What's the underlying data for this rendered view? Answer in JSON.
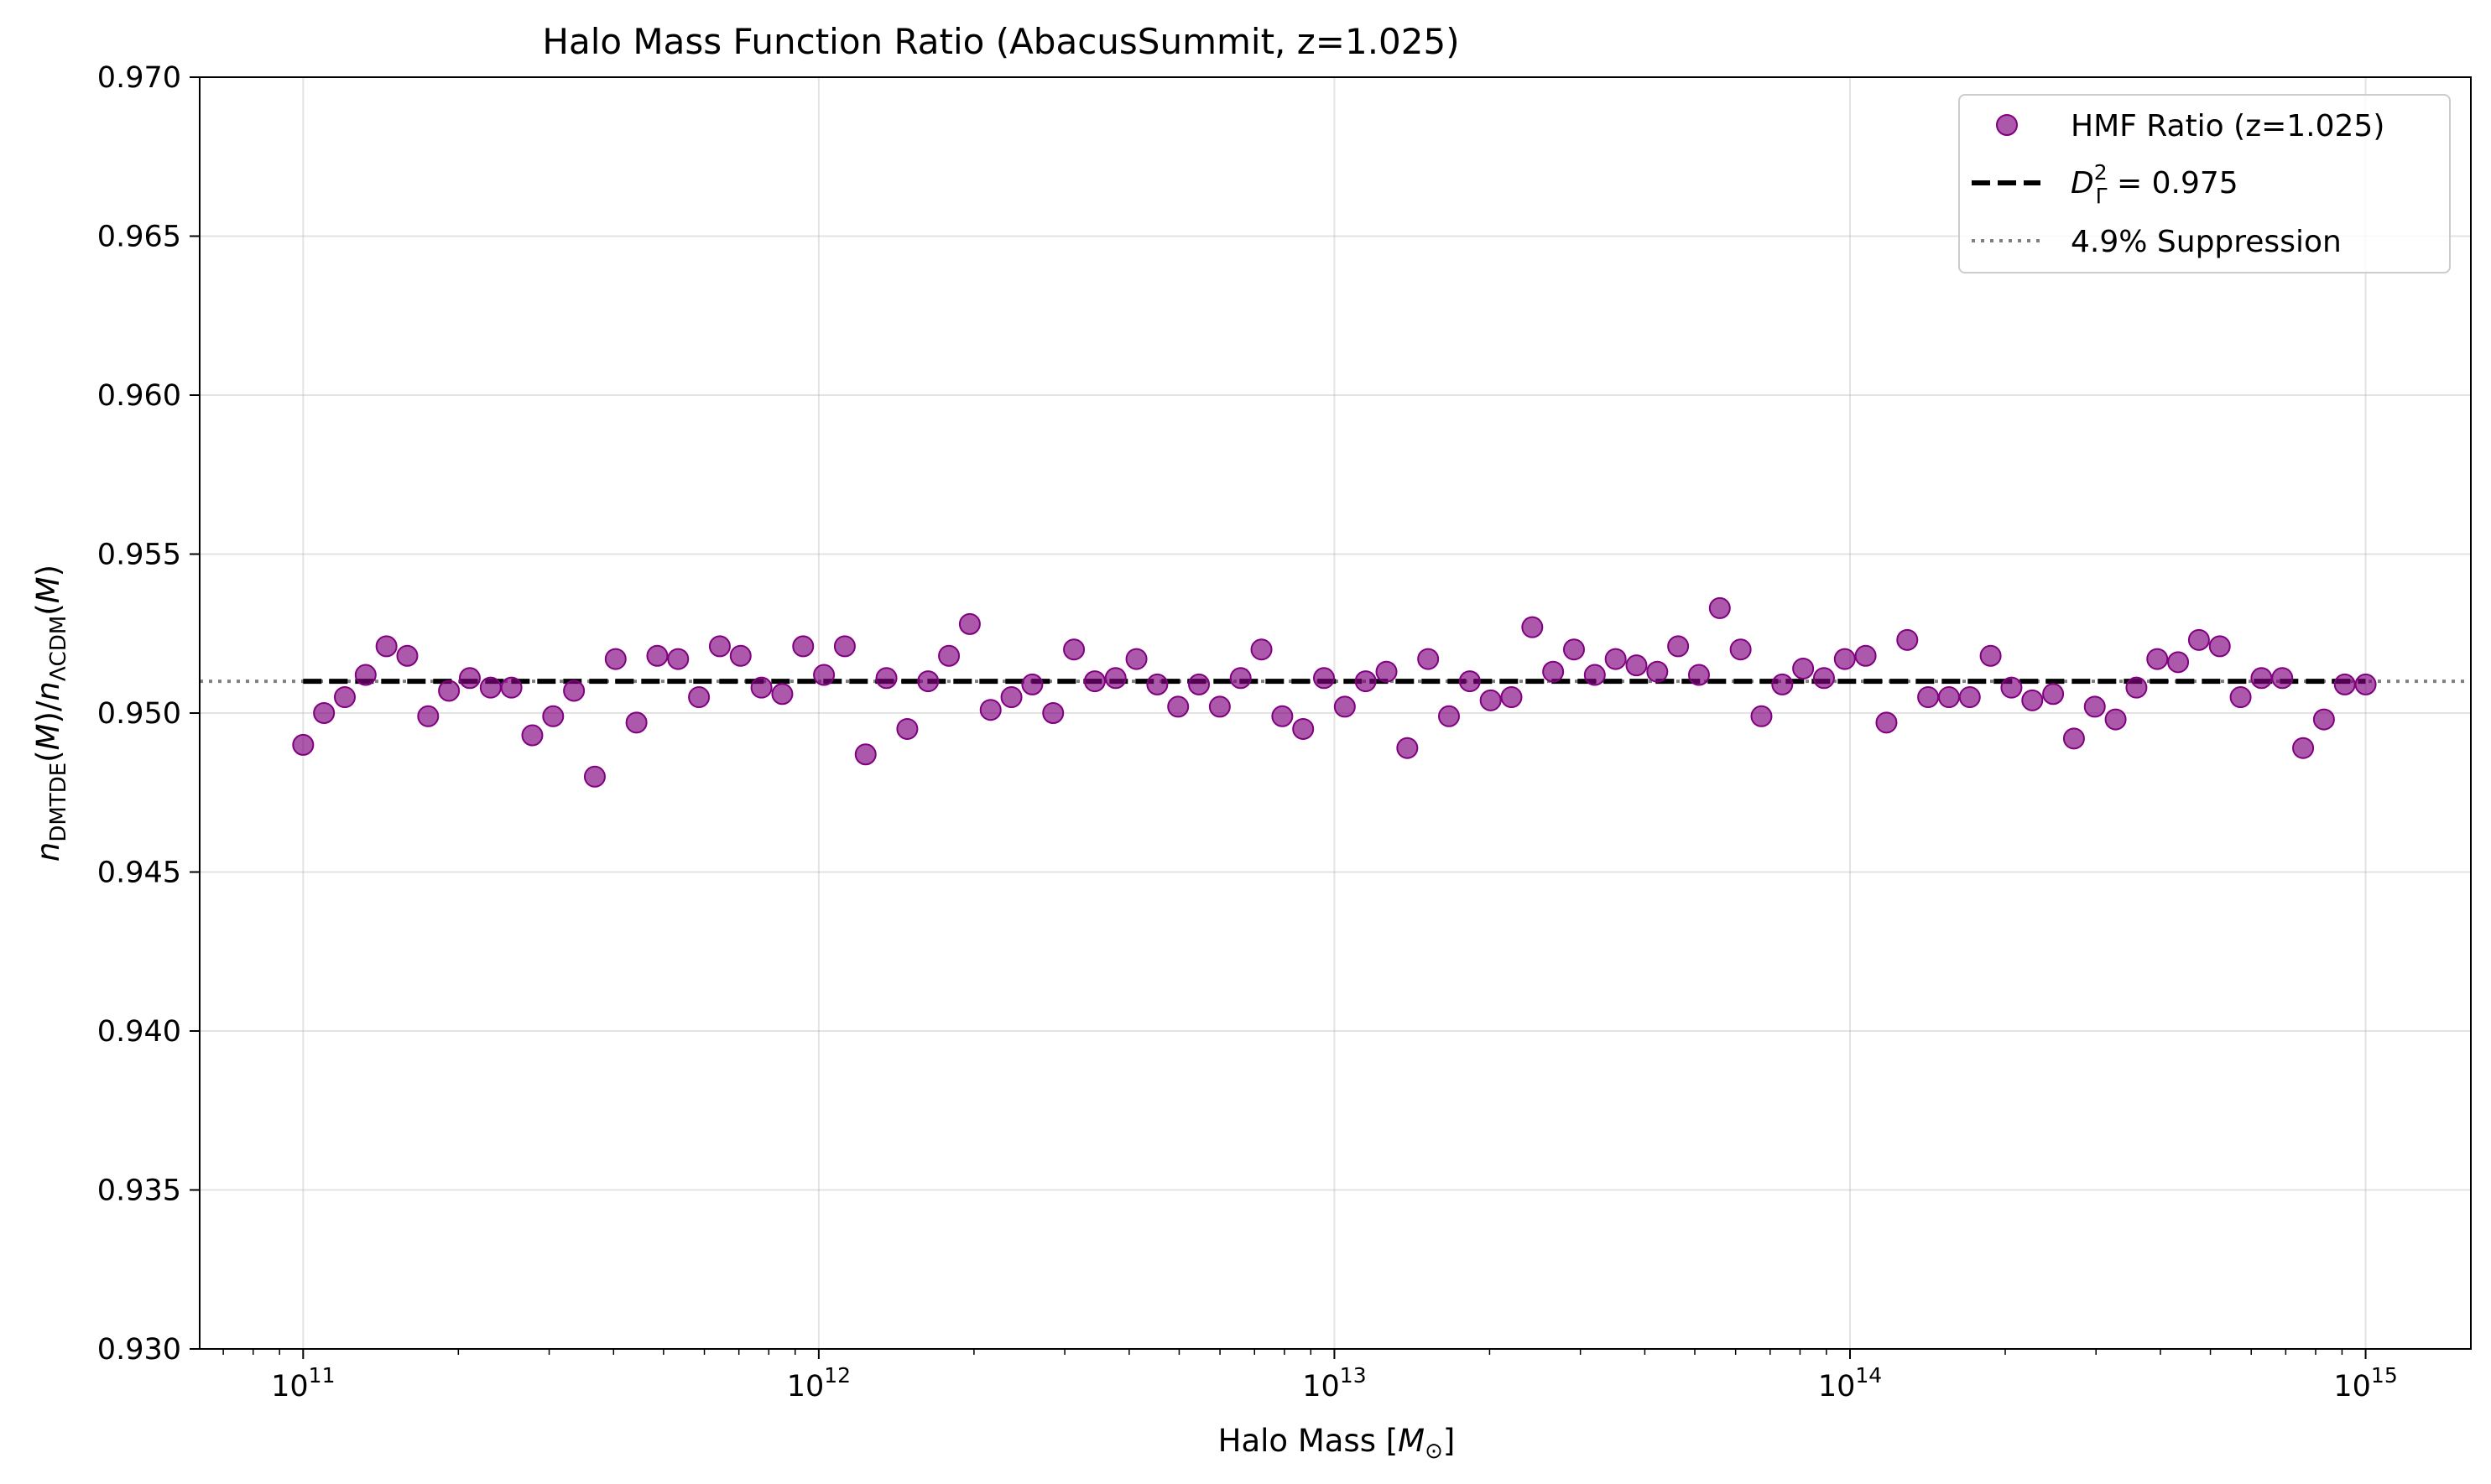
{
  "chart_data": {
    "type": "scatter",
    "title": "Halo Mass Function Ratio (AbacusSummit, z=1.025)",
    "xlabel": "Halo Mass [M⊙]",
    "ylabel": "nDMTDE(M)/nΛCDM(M)",
    "xscale": "log",
    "xlim": [
      63000000000.0,
      1600000000000000.0
    ],
    "ylim": [
      0.93,
      0.97
    ],
    "grid": true,
    "legend_position": "top-right",
    "x_ticks": [
      {
        "value": 100000000000.0,
        "mantissa": "10",
        "exp": "11"
      },
      {
        "value": 1000000000000.0,
        "mantissa": "10",
        "exp": "12"
      },
      {
        "value": 10000000000000.0,
        "mantissa": "10",
        "exp": "13"
      },
      {
        "value": 100000000000000.0,
        "mantissa": "10",
        "exp": "14"
      },
      {
        "value": 1000000000000000.0,
        "mantissa": "10",
        "exp": "15"
      }
    ],
    "y_ticks": [
      "0.930",
      "0.935",
      "0.940",
      "0.945",
      "0.950",
      "0.955",
      "0.960",
      "0.965",
      "0.970"
    ],
    "series": [
      {
        "name": "HMF Ratio (z=1.025)",
        "kind": "scatter",
        "color": "#800080",
        "x_log10_range": [
          11,
          15
        ],
        "y": [
          0.949,
          0.95,
          0.9505,
          0.9512,
          0.9521,
          0.9518,
          0.9499,
          0.9507,
          0.9511,
          0.9508,
          0.9508,
          0.9493,
          0.9499,
          0.9507,
          0.948,
          0.9517,
          0.9497,
          0.9518,
          0.9517,
          0.9505,
          0.9521,
          0.9518,
          0.9508,
          0.9506,
          0.9521,
          0.9512,
          0.9521,
          0.9487,
          0.9511,
          0.9495,
          0.951,
          0.9518,
          0.9528,
          0.9501,
          0.9505,
          0.9509,
          0.95,
          0.952,
          0.951,
          0.9511,
          0.9517,
          0.9509,
          0.9502,
          0.9509,
          0.9502,
          0.9511,
          0.952,
          0.9499,
          0.9495,
          0.9511,
          0.9502,
          0.951,
          0.9513,
          0.9489,
          0.9517,
          0.9499,
          0.951,
          0.9504,
          0.9505,
          0.9527,
          0.9513,
          0.952,
          0.9512,
          0.9517,
          0.9515,
          0.9513,
          0.9521,
          0.9512,
          0.9533,
          0.952,
          0.9499,
          0.9509,
          0.9514,
          0.9511,
          0.9517,
          0.9518,
          0.9497,
          0.9523,
          0.9505,
          0.9505,
          0.9505,
          0.9518,
          0.9508,
          0.9504,
          0.9506,
          0.9492,
          0.9502,
          0.9498,
          0.9508,
          0.9517,
          0.9516,
          0.9523,
          0.9521,
          0.9505,
          0.9511,
          0.9511,
          0.9489,
          0.9498,
          0.9509,
          0.9509
        ]
      },
      {
        "name": "D_Γ² = 0.975",
        "label_main": "D",
        "label_sub": "Γ",
        "label_sup": "2",
        "label_rest": " = 0.975",
        "kind": "dashed-line",
        "color": "#000000",
        "y": 0.951,
        "x_range": [
          100000000000.0,
          1000000000000000.0
        ]
      },
      {
        "name": "4.9% Suppression",
        "kind": "dotted-line",
        "color": "#808080",
        "y": 0.951,
        "x_range": "full"
      }
    ]
  }
}
